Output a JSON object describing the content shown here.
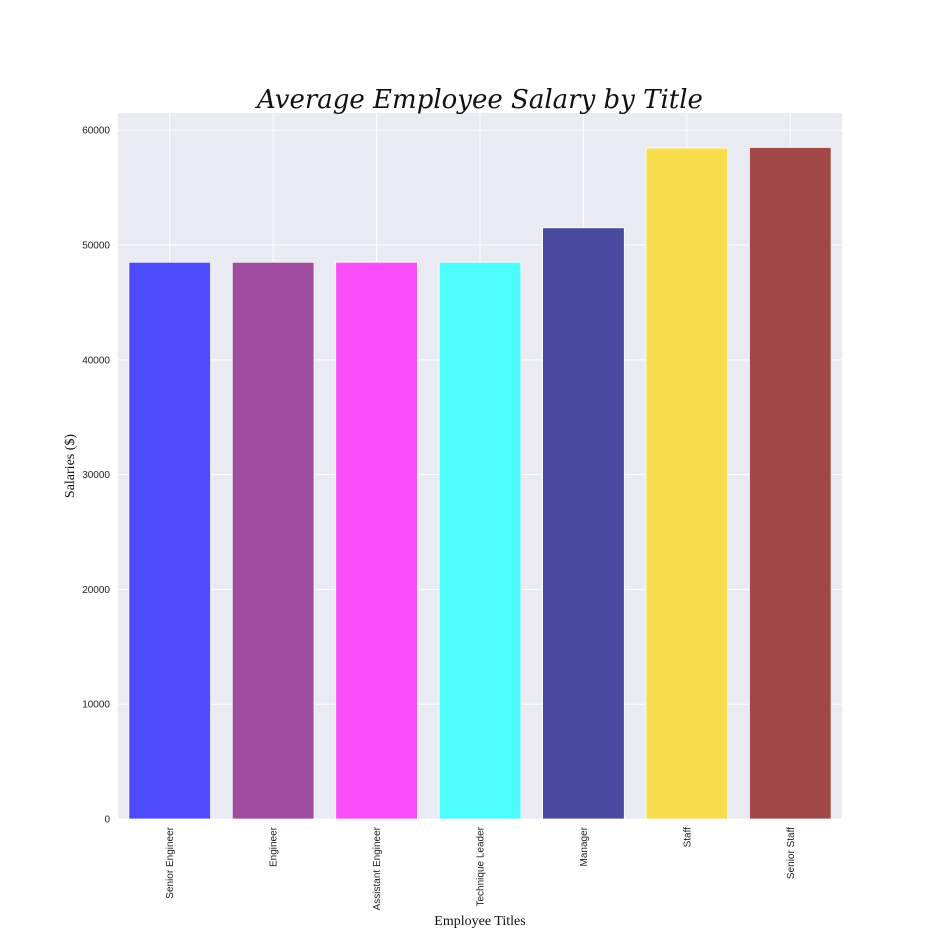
{
  "chart_data": {
    "type": "bar",
    "title": "Average Employee Salary by Title",
    "xlabel": "Employee Titles",
    "ylabel": "Salaries ($)",
    "categories": [
      "Senior Engineer",
      "Engineer",
      "Assistant Engineer",
      "Technique Leader",
      "Manager",
      "Staff",
      "Senior Staff"
    ],
    "values": [
      48500,
      48500,
      48500,
      48500,
      51500,
      58450,
      58500
    ],
    "colors": [
      "#4c4cfc",
      "#9e4ba0",
      "#f94df9",
      "#4cfcfc",
      "#4949a0",
      "#f7dc4e",
      "#a24848"
    ],
    "ylim": [
      0,
      61500
    ],
    "yticks": [
      0,
      10000,
      20000,
      30000,
      40000,
      50000,
      60000
    ],
    "ytick_labels": [
      "0",
      "10000",
      "20000",
      "30000",
      "40000",
      "50000",
      "60000"
    ],
    "grid": true,
    "background": "#eaeaf2",
    "grid_color": "#ffffff"
  }
}
